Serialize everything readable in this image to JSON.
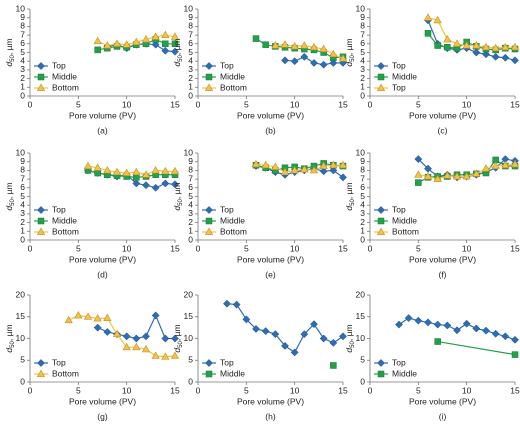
{
  "chart_data": [
    {
      "type": "line",
      "caption": "(a)",
      "xlabel": "Pore volume (PV)",
      "ylabel": {
        "symbol": "d",
        "subscript": "50",
        "unit": ", µm"
      },
      "xlim": [
        0,
        15
      ],
      "xticks": [
        0,
        5,
        10,
        15
      ],
      "ylim": [
        0,
        10
      ],
      "yticks": [
        0,
        1,
        2,
        3,
        4,
        5,
        6,
        7,
        8,
        9,
        10
      ],
      "legend": "lower left",
      "series": [
        {
          "name": "Top",
          "color": "#2e6db4",
          "marker": "diamond",
          "x": [
            8,
            9,
            10,
            11,
            12,
            13,
            14,
            15
          ],
          "values": [
            5.7,
            5.9,
            5.5,
            5.9,
            6.0,
            5.9,
            5.2,
            5.1
          ]
        },
        {
          "name": "Middle",
          "color": "#23a04a",
          "marker": "square",
          "x": [
            7,
            8,
            9,
            10,
            11,
            12,
            13,
            14,
            15
          ],
          "values": [
            5.3,
            5.5,
            5.7,
            5.6,
            5.9,
            6.0,
            6.5,
            6.0,
            6.0
          ]
        },
        {
          "name": "Bottom",
          "color": "#f2c14e",
          "marker": "triangle",
          "x": [
            7,
            8,
            9,
            10,
            11,
            12,
            13,
            14,
            15
          ],
          "values": [
            6.3,
            5.8,
            6.0,
            5.9,
            6.2,
            6.5,
            6.8,
            7.0,
            6.8
          ]
        }
      ]
    },
    {
      "type": "line",
      "caption": "(b)",
      "xlabel": "Pore volume (PV)",
      "ylabel": {
        "symbol": "d",
        "subscript": "50",
        "unit": ", µm"
      },
      "xlim": [
        0,
        15
      ],
      "xticks": [
        0,
        5,
        10,
        15
      ],
      "ylim": [
        0,
        10
      ],
      "yticks": [
        0,
        1,
        2,
        3,
        4,
        5,
        6,
        7,
        8,
        9,
        10
      ],
      "legend": "lower left",
      "series": [
        {
          "name": "Top",
          "color": "#2e6db4",
          "marker": "diamond",
          "x": [
            9,
            10,
            11,
            12,
            13,
            14,
            15
          ],
          "values": [
            4.1,
            4.0,
            4.5,
            3.8,
            3.6,
            3.8,
            3.8
          ]
        },
        {
          "name": "Middle",
          "color": "#23a04a",
          "marker": "square",
          "x": [
            6,
            7,
            8,
            9,
            10,
            11,
            12,
            13,
            14,
            15
          ],
          "values": [
            6.6,
            5.9,
            5.7,
            5.6,
            5.5,
            5.4,
            5.3,
            5.0,
            4.4,
            4.5
          ]
        },
        {
          "name": "Bottom",
          "color": "#f2c14e",
          "marker": "triangle",
          "x": [
            8,
            9,
            10,
            11,
            12,
            13,
            14,
            15
          ],
          "values": [
            5.8,
            5.9,
            5.7,
            5.8,
            5.6,
            5.4,
            4.8,
            4.3
          ]
        }
      ]
    },
    {
      "type": "line",
      "caption": "(c)",
      "xlabel": "Pore volume (PV)",
      "ylabel": {
        "symbol": "d",
        "subscript": "50",
        "unit": ", µm"
      },
      "xlim": [
        0,
        15
      ],
      "xticks": [
        0,
        5,
        10,
        15
      ],
      "ylim": [
        0,
        10
      ],
      "yticks": [
        0,
        1,
        2,
        3,
        4,
        5,
        6,
        7,
        8,
        9,
        10
      ],
      "legend": "lower left",
      "series": [
        {
          "name": "Top",
          "color": "#2e6db4",
          "marker": "diamond",
          "x": [
            6,
            7,
            8,
            9,
            10,
            11,
            12,
            13,
            14,
            15
          ],
          "values": [
            8.7,
            6.0,
            5.5,
            5.3,
            5.5,
            5.0,
            4.8,
            4.5,
            4.4,
            4.1
          ]
        },
        {
          "name": "Middle",
          "color": "#23a04a",
          "marker": "square",
          "x": [
            6,
            7,
            8,
            9,
            10,
            11,
            12,
            13,
            14,
            15
          ],
          "values": [
            7.2,
            5.8,
            5.6,
            5.5,
            6.2,
            5.7,
            5.4,
            5.3,
            5.5,
            5.4
          ]
        },
        {
          "name": "Top",
          "color": "#f2c14e",
          "marker": "triangle",
          "x": [
            6,
            7,
            8,
            9,
            10,
            11,
            12,
            13,
            14,
            15
          ],
          "values": [
            9.0,
            8.7,
            6.5,
            6.0,
            5.8,
            5.8,
            5.6,
            5.5,
            5.6,
            5.6
          ]
        }
      ]
    },
    {
      "type": "line",
      "caption": "(d)",
      "xlabel": "Pore volume (PV)",
      "ylabel": {
        "symbol": "d",
        "subscript": "50",
        "unit": ", µm"
      },
      "xlim": [
        0,
        15
      ],
      "xticks": [
        0,
        5,
        10,
        15
      ],
      "ylim": [
        0,
        10
      ],
      "yticks": [
        0,
        1,
        2,
        3,
        4,
        5,
        6,
        7,
        8,
        9,
        10
      ],
      "legend": "lower left",
      "series": [
        {
          "name": "Top",
          "color": "#2e6db4",
          "marker": "diamond",
          "x": [
            6,
            7,
            8,
            9,
            10,
            11,
            12,
            13,
            14,
            15
          ],
          "values": [
            8.0,
            7.7,
            7.5,
            7.3,
            7.5,
            6.5,
            6.3,
            6.0,
            6.5,
            6.4
          ]
        },
        {
          "name": "Middle",
          "color": "#23a04a",
          "marker": "square",
          "x": [
            6,
            7,
            8,
            9,
            10,
            11,
            12,
            13,
            14,
            15
          ],
          "values": [
            8.0,
            7.7,
            7.5,
            7.4,
            7.3,
            7.2,
            7.3,
            7.5,
            7.5,
            7.5
          ]
        },
        {
          "name": "Bottom",
          "color": "#f2c14e",
          "marker": "triangle",
          "x": [
            6,
            7,
            8,
            9,
            10,
            11,
            12,
            13,
            14,
            15
          ],
          "values": [
            8.5,
            8.3,
            8.0,
            7.8,
            7.7,
            7.8,
            7.5,
            8.0,
            7.9,
            7.9
          ]
        }
      ]
    },
    {
      "type": "line",
      "caption": "(e)",
      "xlabel": "Pore volume (PV)",
      "ylabel": {
        "symbol": "d",
        "subscript": "50",
        "unit": ", µm"
      },
      "xlim": [
        0,
        15
      ],
      "xticks": [
        0,
        5,
        10,
        15
      ],
      "ylim": [
        0,
        10
      ],
      "yticks": [
        0,
        1,
        2,
        3,
        4,
        5,
        6,
        7,
        8,
        9,
        10
      ],
      "legend": "lower left",
      "series": [
        {
          "name": "Top",
          "color": "#2e6db4",
          "marker": "diamond",
          "x": [
            6,
            7,
            8,
            9,
            10,
            11,
            12,
            13,
            14,
            15
          ],
          "values": [
            8.5,
            8.3,
            7.8,
            7.5,
            7.8,
            8.0,
            8.2,
            7.9,
            8.0,
            7.2
          ]
        },
        {
          "name": "Middle",
          "color": "#23a04a",
          "marker": "square",
          "x": [
            6,
            7,
            8,
            9,
            10,
            11,
            12,
            13,
            14,
            15
          ],
          "values": [
            8.6,
            8.3,
            8.0,
            8.3,
            8.4,
            8.2,
            8.5,
            8.8,
            8.6,
            8.5
          ]
        },
        {
          "name": "Bottom",
          "color": "#f2c14e",
          "marker": "triangle",
          "x": [
            6,
            7,
            8,
            9,
            10,
            11,
            12,
            13,
            14,
            15
          ],
          "values": [
            8.7,
            8.6,
            8.4,
            7.8,
            8.0,
            8.1,
            8.0,
            8.5,
            8.6,
            8.6
          ]
        }
      ]
    },
    {
      "type": "line",
      "caption": "(f)",
      "xlabel": "Pore volume (PV)",
      "ylabel": {
        "symbol": "d",
        "subscript": "50",
        "unit": ", µm"
      },
      "xlim": [
        0,
        15
      ],
      "xticks": [
        0,
        5,
        10,
        15
      ],
      "ylim": [
        0,
        10
      ],
      "yticks": [
        0,
        1,
        2,
        3,
        4,
        5,
        6,
        7,
        8,
        9,
        10
      ],
      "legend": "lower left",
      "series": [
        {
          "name": "Top",
          "color": "#2e6db4",
          "marker": "diamond",
          "x": [
            5,
            6,
            7,
            8,
            9,
            10,
            11,
            12,
            13,
            14,
            15
          ],
          "values": [
            9.3,
            8.2,
            7.3,
            7.5,
            7.2,
            7.3,
            7.5,
            7.8,
            8.3,
            9.3,
            9.1
          ]
        },
        {
          "name": "Middle",
          "color": "#23a04a",
          "marker": "square",
          "x": [
            5,
            6,
            7,
            8,
            9,
            10,
            11,
            12,
            13,
            14,
            15
          ],
          "values": [
            6.6,
            7.2,
            7.3,
            7.3,
            7.5,
            7.5,
            7.6,
            7.7,
            9.2,
            8.5,
            8.5
          ]
        },
        {
          "name": "Bottom",
          "color": "#f2c14e",
          "marker": "triangle",
          "x": [
            5,
            6,
            7,
            8,
            9,
            10,
            11,
            12,
            13,
            14,
            15
          ],
          "values": [
            7.5,
            7.3,
            7.0,
            7.4,
            7.3,
            7.3,
            7.6,
            8.2,
            8.5,
            8.6,
            8.7
          ]
        }
      ]
    },
    {
      "type": "line",
      "caption": "(g)",
      "xlabel": "Pore volume (PV)",
      "ylabel": {
        "symbol": "d",
        "subscript": "50",
        "unit": ", µm"
      },
      "xlim": [
        0,
        15
      ],
      "xticks": [
        0,
        5,
        10,
        15
      ],
      "ylim": [
        0,
        20
      ],
      "yticks": [
        0,
        5,
        10,
        15,
        20
      ],
      "legend": "lower left",
      "series": [
        {
          "name": "Top",
          "color": "#2e6db4",
          "marker": "diamond",
          "x": [
            7,
            8,
            9,
            10,
            11,
            12,
            13,
            14,
            15
          ],
          "values": [
            12.5,
            11.5,
            11.0,
            10.5,
            10.0,
            10.5,
            15.3,
            10.0,
            10.0
          ]
        },
        {
          "name": "Bottom",
          "color": "#f2c14e",
          "marker": "triangle",
          "x": [
            4,
            5,
            6,
            7,
            8,
            9,
            10,
            11,
            12,
            13,
            14,
            15
          ],
          "values": [
            14.2,
            15.3,
            15.0,
            14.6,
            14.7,
            11.0,
            8.0,
            8.0,
            7.5,
            6.0,
            5.8,
            6.0
          ]
        }
      ]
    },
    {
      "type": "line",
      "caption": "(h)",
      "xlabel": "Pore volume (PV)",
      "ylabel": {
        "symbol": "d",
        "subscript": "50",
        "unit": ", µm"
      },
      "xlim": [
        0,
        15
      ],
      "xticks": [
        0,
        5,
        10,
        15
      ],
      "ylim": [
        0,
        20
      ],
      "yticks": [
        0,
        5,
        10,
        15,
        20
      ],
      "legend": "lower left",
      "series": [
        {
          "name": "Top",
          "color": "#2e6db4",
          "marker": "diamond",
          "x": [
            3,
            4,
            5,
            6,
            7,
            8,
            9,
            10,
            11,
            12,
            13,
            14,
            15
          ],
          "values": [
            18.0,
            17.8,
            14.4,
            12.2,
            11.7,
            11.0,
            8.3,
            6.8,
            11.0,
            13.3,
            10.0,
            9.0,
            10.5
          ]
        },
        {
          "name": "Middle",
          "color": "#23a04a",
          "marker": "square",
          "x": [
            14
          ],
          "values": [
            3.8
          ]
        }
      ]
    },
    {
      "type": "line",
      "caption": "(i)",
      "xlabel": "Pore volume (PV)",
      "ylabel": {
        "symbol": "d",
        "subscript": "50",
        "unit": ", µm"
      },
      "xlim": [
        0,
        15
      ],
      "xticks": [
        0,
        5,
        10,
        15
      ],
      "ylim": [
        0,
        20
      ],
      "yticks": [
        0,
        5,
        10,
        15,
        20
      ],
      "legend": "lower left",
      "series": [
        {
          "name": "Top",
          "color": "#2e6db4",
          "marker": "diamond",
          "x": [
            3,
            4,
            5,
            6,
            7,
            8,
            9,
            10,
            11,
            12,
            13,
            14,
            15
          ],
          "values": [
            13.2,
            14.7,
            14.1,
            13.7,
            13.2,
            13.0,
            11.9,
            13.4,
            12.3,
            11.8,
            11.1,
            10.5,
            9.7
          ]
        },
        {
          "name": "Middle",
          "color": "#23a04a",
          "marker": "square",
          "x": [
            7,
            15
          ],
          "values": [
            9.3,
            6.3
          ]
        }
      ]
    }
  ]
}
